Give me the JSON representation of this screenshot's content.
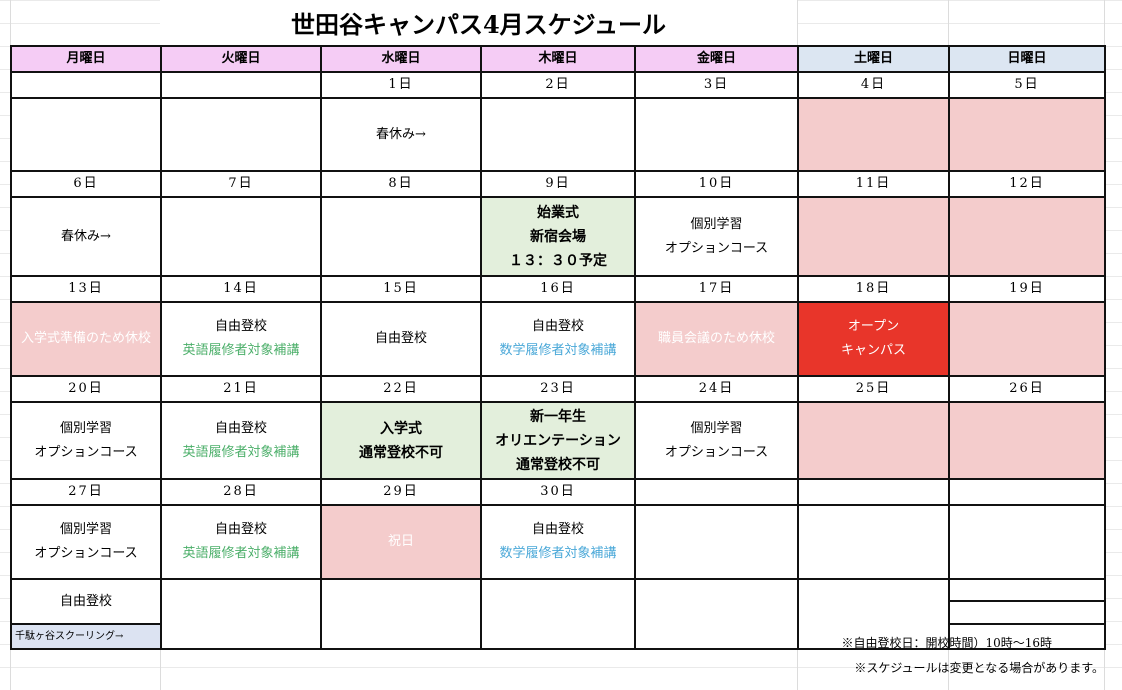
{
  "title": "世田谷キャンパス4月スケジュール",
  "weekdays": [
    "月曜日",
    "火曜日",
    "水曜日",
    "木曜日",
    "金曜日",
    "土曜日",
    "日曜日"
  ],
  "colors": {
    "header": "#f5ccf5",
    "weekend_header": "#dce6f2",
    "holiday": "#f4cccc",
    "event": "#e3efdc",
    "open_campus": "#e8352a",
    "english": "#4caf6a",
    "math": "#4aa8d8",
    "schooling": "#dce3f2"
  },
  "weeks": [
    {
      "dates": [
        "",
        "",
        "1日",
        "2日",
        "3日",
        "4日",
        "5日"
      ],
      "cells": [
        {
          "lines": []
        },
        {
          "lines": []
        },
        {
          "lines": [
            {
              "text": "春休み→"
            }
          ]
        },
        {
          "lines": []
        },
        {
          "lines": []
        },
        {
          "bg": "holiday",
          "lines": []
        },
        {
          "bg": "holiday",
          "lines": []
        }
      ]
    },
    {
      "dates": [
        "6日",
        "7日",
        "8日",
        "9日",
        "10日",
        "11日",
        "12日"
      ],
      "cells": [
        {
          "lines": [
            {
              "text": "春休み→"
            }
          ]
        },
        {
          "lines": []
        },
        {
          "lines": []
        },
        {
          "bg": "event",
          "bold": true,
          "lines": [
            {
              "text": "始業式"
            },
            {
              "text": "新宿会場"
            },
            {
              "text": "１３：３０予定"
            }
          ]
        },
        {
          "lines": [
            {
              "text": "個別学習"
            },
            {
              "text": "オプションコース"
            }
          ]
        },
        {
          "bg": "holiday",
          "lines": []
        },
        {
          "bg": "holiday",
          "lines": []
        }
      ]
    },
    {
      "dates": [
        "13日",
        "14日",
        "15日",
        "16日",
        "17日",
        "18日",
        "19日"
      ],
      "cells": [
        {
          "bg": "holiday",
          "lines": [
            {
              "text": "入学式準備のため休校",
              "color": "#ffffff"
            }
          ]
        },
        {
          "lines": [
            {
              "text": "自由登校"
            },
            {
              "text": "英語履修者対象補講",
              "color": "english"
            }
          ]
        },
        {
          "lines": [
            {
              "text": "自由登校"
            }
          ]
        },
        {
          "lines": [
            {
              "text": "自由登校"
            },
            {
              "text": "数学履修者対象補講",
              "color": "math"
            }
          ]
        },
        {
          "bg": "holiday",
          "lines": [
            {
              "text": "職員会議のため休校",
              "color": "#ffffff"
            }
          ]
        },
        {
          "bg": "open_campus",
          "lines": [
            {
              "text": "オープン",
              "color": "#ffffff"
            },
            {
              "text": "キャンパス",
              "color": "#ffffff"
            }
          ]
        },
        {
          "bg": "holiday",
          "lines": []
        }
      ]
    },
    {
      "dates": [
        "20日",
        "21日",
        "22日",
        "23日",
        "24日",
        "25日",
        "26日"
      ],
      "cells": [
        {
          "lines": [
            {
              "text": "個別学習"
            },
            {
              "text": "オプションコース"
            }
          ]
        },
        {
          "lines": [
            {
              "text": "自由登校"
            },
            {
              "text": "英語履修者対象補講",
              "color": "english"
            }
          ]
        },
        {
          "bg": "event",
          "bold": true,
          "lines": [
            {
              "text": "入学式"
            },
            {
              "text": "通常登校不可"
            }
          ]
        },
        {
          "bg": "event",
          "bold": true,
          "lines": [
            {
              "text": "新一年生"
            },
            {
              "text": "オリエンテーション"
            },
            {
              "text": "通常登校不可"
            }
          ]
        },
        {
          "lines": [
            {
              "text": "個別学習"
            },
            {
              "text": "オプションコース"
            }
          ]
        },
        {
          "bg": "holiday",
          "lines": []
        },
        {
          "bg": "holiday",
          "lines": []
        }
      ]
    },
    {
      "dates": [
        "27日",
        "28日",
        "29日",
        "30日",
        "",
        "",
        ""
      ],
      "cells": [
        {
          "lines": [
            {
              "text": "個別学習"
            },
            {
              "text": "オプションコース"
            }
          ]
        },
        {
          "lines": [
            {
              "text": "自由登校"
            },
            {
              "text": "英語履修者対象補講",
              "color": "english"
            }
          ]
        },
        {
          "bg": "holiday",
          "lines": [
            {
              "text": "祝日",
              "color": "#ffffff"
            }
          ]
        },
        {
          "lines": [
            {
              "text": "自由登校"
            },
            {
              "text": "数学履修者対象補講",
              "color": "math"
            }
          ]
        },
        {
          "lines": []
        },
        {
          "lines": []
        },
        {
          "lines": []
        }
      ]
    }
  ],
  "extra_row": {
    "monday": "自由登校",
    "schooling": "千駄ヶ谷スクーリング→"
  },
  "notes": [
    "※自由登校日：開校時間）10時〜16時",
    "※スケジュールは変更となる場合があります。"
  ]
}
